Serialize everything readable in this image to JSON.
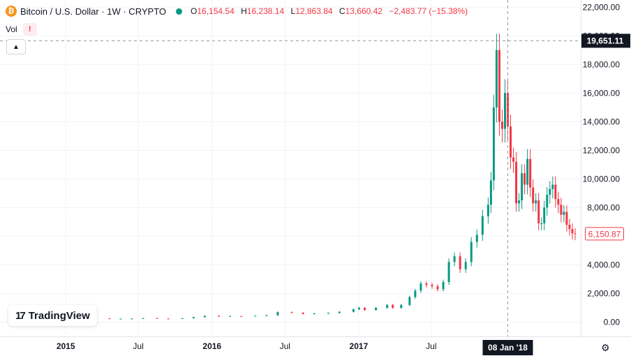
{
  "header": {
    "coin_symbol": "₿",
    "title": "Bitcoin / U.S. Dollar · 1W · CRYPTO",
    "ohlc": [
      {
        "key": "O",
        "value": "16,154.54"
      },
      {
        "key": "H",
        "value": "16,238.14"
      },
      {
        "key": "L",
        "value": "12,863.84"
      },
      {
        "key": "C",
        "value": "13,660.42"
      }
    ],
    "change": "−2,483.77 (−15.38%)",
    "vol_label": "Vol",
    "vol_warning": "!",
    "collapse_icon": "chevron-up-icon"
  },
  "branding": {
    "logo_mark": "17",
    "logo_text": "TradingView"
  },
  "crosshair": {
    "price_label": "19,651.11",
    "price_value": 19651.11,
    "date_label": "08 Jan '18",
    "date": "2018-01-08"
  },
  "last_price": {
    "label": "6,150.87",
    "value": 6150.87
  },
  "colors": {
    "up": "#089981",
    "down": "#f23645",
    "grid": "#f0f3fa",
    "text": "#131722"
  },
  "chart_data": {
    "type": "candlestick",
    "title": "Bitcoin / U.S. Dollar · 1W · CRYPTO",
    "y_tick_labels": [
      "0.00",
      "2,000.00",
      "4,000.00",
      "6,000.00",
      "8,000.00",
      "10,000.00",
      "12,000.00",
      "14,000.00",
      "16,000.00",
      "18,000.00",
      "20,000.00",
      "22,000.00"
    ],
    "y_ticks": [
      0,
      2000,
      4000,
      6000,
      8000,
      10000,
      12000,
      14000,
      16000,
      18000,
      20000,
      22000
    ],
    "ylim": [
      -1000,
      22500
    ],
    "x_tick_labels": [
      "2015",
      "Jul",
      "2016",
      "Jul",
      "2017",
      "Jul"
    ],
    "x_ticks": [
      "2015-01-01",
      "2015-07-01",
      "2016-01-01",
      "2016-07-01",
      "2017-01-01",
      "2017-07-01"
    ],
    "xlim": [
      "2014-07-21",
      "2018-07-09"
    ],
    "grid": true,
    "series": [
      {
        "name": "BTCUSD",
        "points": [
          [
            "2014-07-21",
            600
          ],
          [
            "2014-08-18",
            520
          ],
          [
            "2014-09-15",
            420
          ],
          [
            "2014-10-20",
            360
          ],
          [
            "2014-11-17",
            380
          ],
          [
            "2014-12-22",
            320
          ],
          [
            "2015-01-19",
            230
          ],
          [
            "2015-02-16",
            250
          ],
          [
            "2015-03-16",
            260
          ],
          [
            "2015-04-20",
            230
          ],
          [
            "2015-05-18",
            240
          ],
          [
            "2015-06-15",
            250
          ],
          [
            "2015-07-13",
            280
          ],
          [
            "2015-08-17",
            250
          ],
          [
            "2015-09-14",
            235
          ],
          [
            "2015-10-19",
            270
          ],
          [
            "2015-11-16",
            350
          ],
          [
            "2015-12-14",
            440
          ],
          [
            "2016-01-18",
            390
          ],
          [
            "2016-02-15",
            420
          ],
          [
            "2016-03-14",
            415
          ],
          [
            "2016-04-18",
            440
          ],
          [
            "2016-05-16",
            480
          ],
          [
            "2016-06-13",
            700
          ],
          [
            "2016-07-18",
            660
          ],
          [
            "2016-08-15",
            580
          ],
          [
            "2016-09-12",
            610
          ],
          [
            "2016-10-17",
            640
          ],
          [
            "2016-11-14",
            720
          ],
          [
            "2016-12-19",
            900
          ],
          [
            "2017-01-02",
            1000
          ],
          [
            "2017-01-16",
            850
          ],
          [
            "2017-02-13",
            1000
          ],
          [
            "2017-03-13",
            1200
          ],
          [
            "2017-03-27",
            1000
          ],
          [
            "2017-04-17",
            1200
          ],
          [
            "2017-05-08",
            1750
          ],
          [
            "2017-05-22",
            2200
          ],
          [
            "2017-06-05",
            2700
          ],
          [
            "2017-06-19",
            2600
          ],
          [
            "2017-07-03",
            2500
          ],
          [
            "2017-07-17",
            2300
          ],
          [
            "2017-07-31",
            2800
          ],
          [
            "2017-08-14",
            4200
          ],
          [
            "2017-08-28",
            4600
          ],
          [
            "2017-09-11",
            3700
          ],
          [
            "2017-09-25",
            4200
          ],
          [
            "2017-10-09",
            5600
          ],
          [
            "2017-10-23",
            6100
          ],
          [
            "2017-11-06",
            7400
          ],
          [
            "2017-11-20",
            8200
          ],
          [
            "2017-11-27",
            9900
          ],
          [
            "2017-12-04",
            15000
          ],
          [
            "2017-12-11",
            19000
          ],
          [
            "2017-12-18",
            14000
          ],
          [
            "2017-12-25",
            13500
          ],
          [
            "2018-01-01",
            16000
          ],
          [
            "2018-01-08",
            13660
          ],
          [
            "2018-01-15",
            11500
          ],
          [
            "2018-01-22",
            11200
          ],
          [
            "2018-01-29",
            8300
          ],
          [
            "2018-02-05",
            8500
          ],
          [
            "2018-02-12",
            10400
          ],
          [
            "2018-02-19",
            9600
          ],
          [
            "2018-02-26",
            11400
          ],
          [
            "2018-03-05",
            9400
          ],
          [
            "2018-03-12",
            8300
          ],
          [
            "2018-03-19",
            8500
          ],
          [
            "2018-03-26",
            6900
          ],
          [
            "2018-04-02",
            6900
          ],
          [
            "2018-04-09",
            8000
          ],
          [
            "2018-04-16",
            8900
          ],
          [
            "2018-04-23",
            9300
          ],
          [
            "2018-04-30",
            9600
          ],
          [
            "2018-05-07",
            8600
          ],
          [
            "2018-05-14",
            8200
          ],
          [
            "2018-05-21",
            7500
          ],
          [
            "2018-05-28",
            7700
          ],
          [
            "2018-06-04",
            6800
          ],
          [
            "2018-06-11",
            6500
          ],
          [
            "2018-06-18",
            6200
          ],
          [
            "2018-06-25",
            6150
          ]
        ]
      }
    ]
  }
}
